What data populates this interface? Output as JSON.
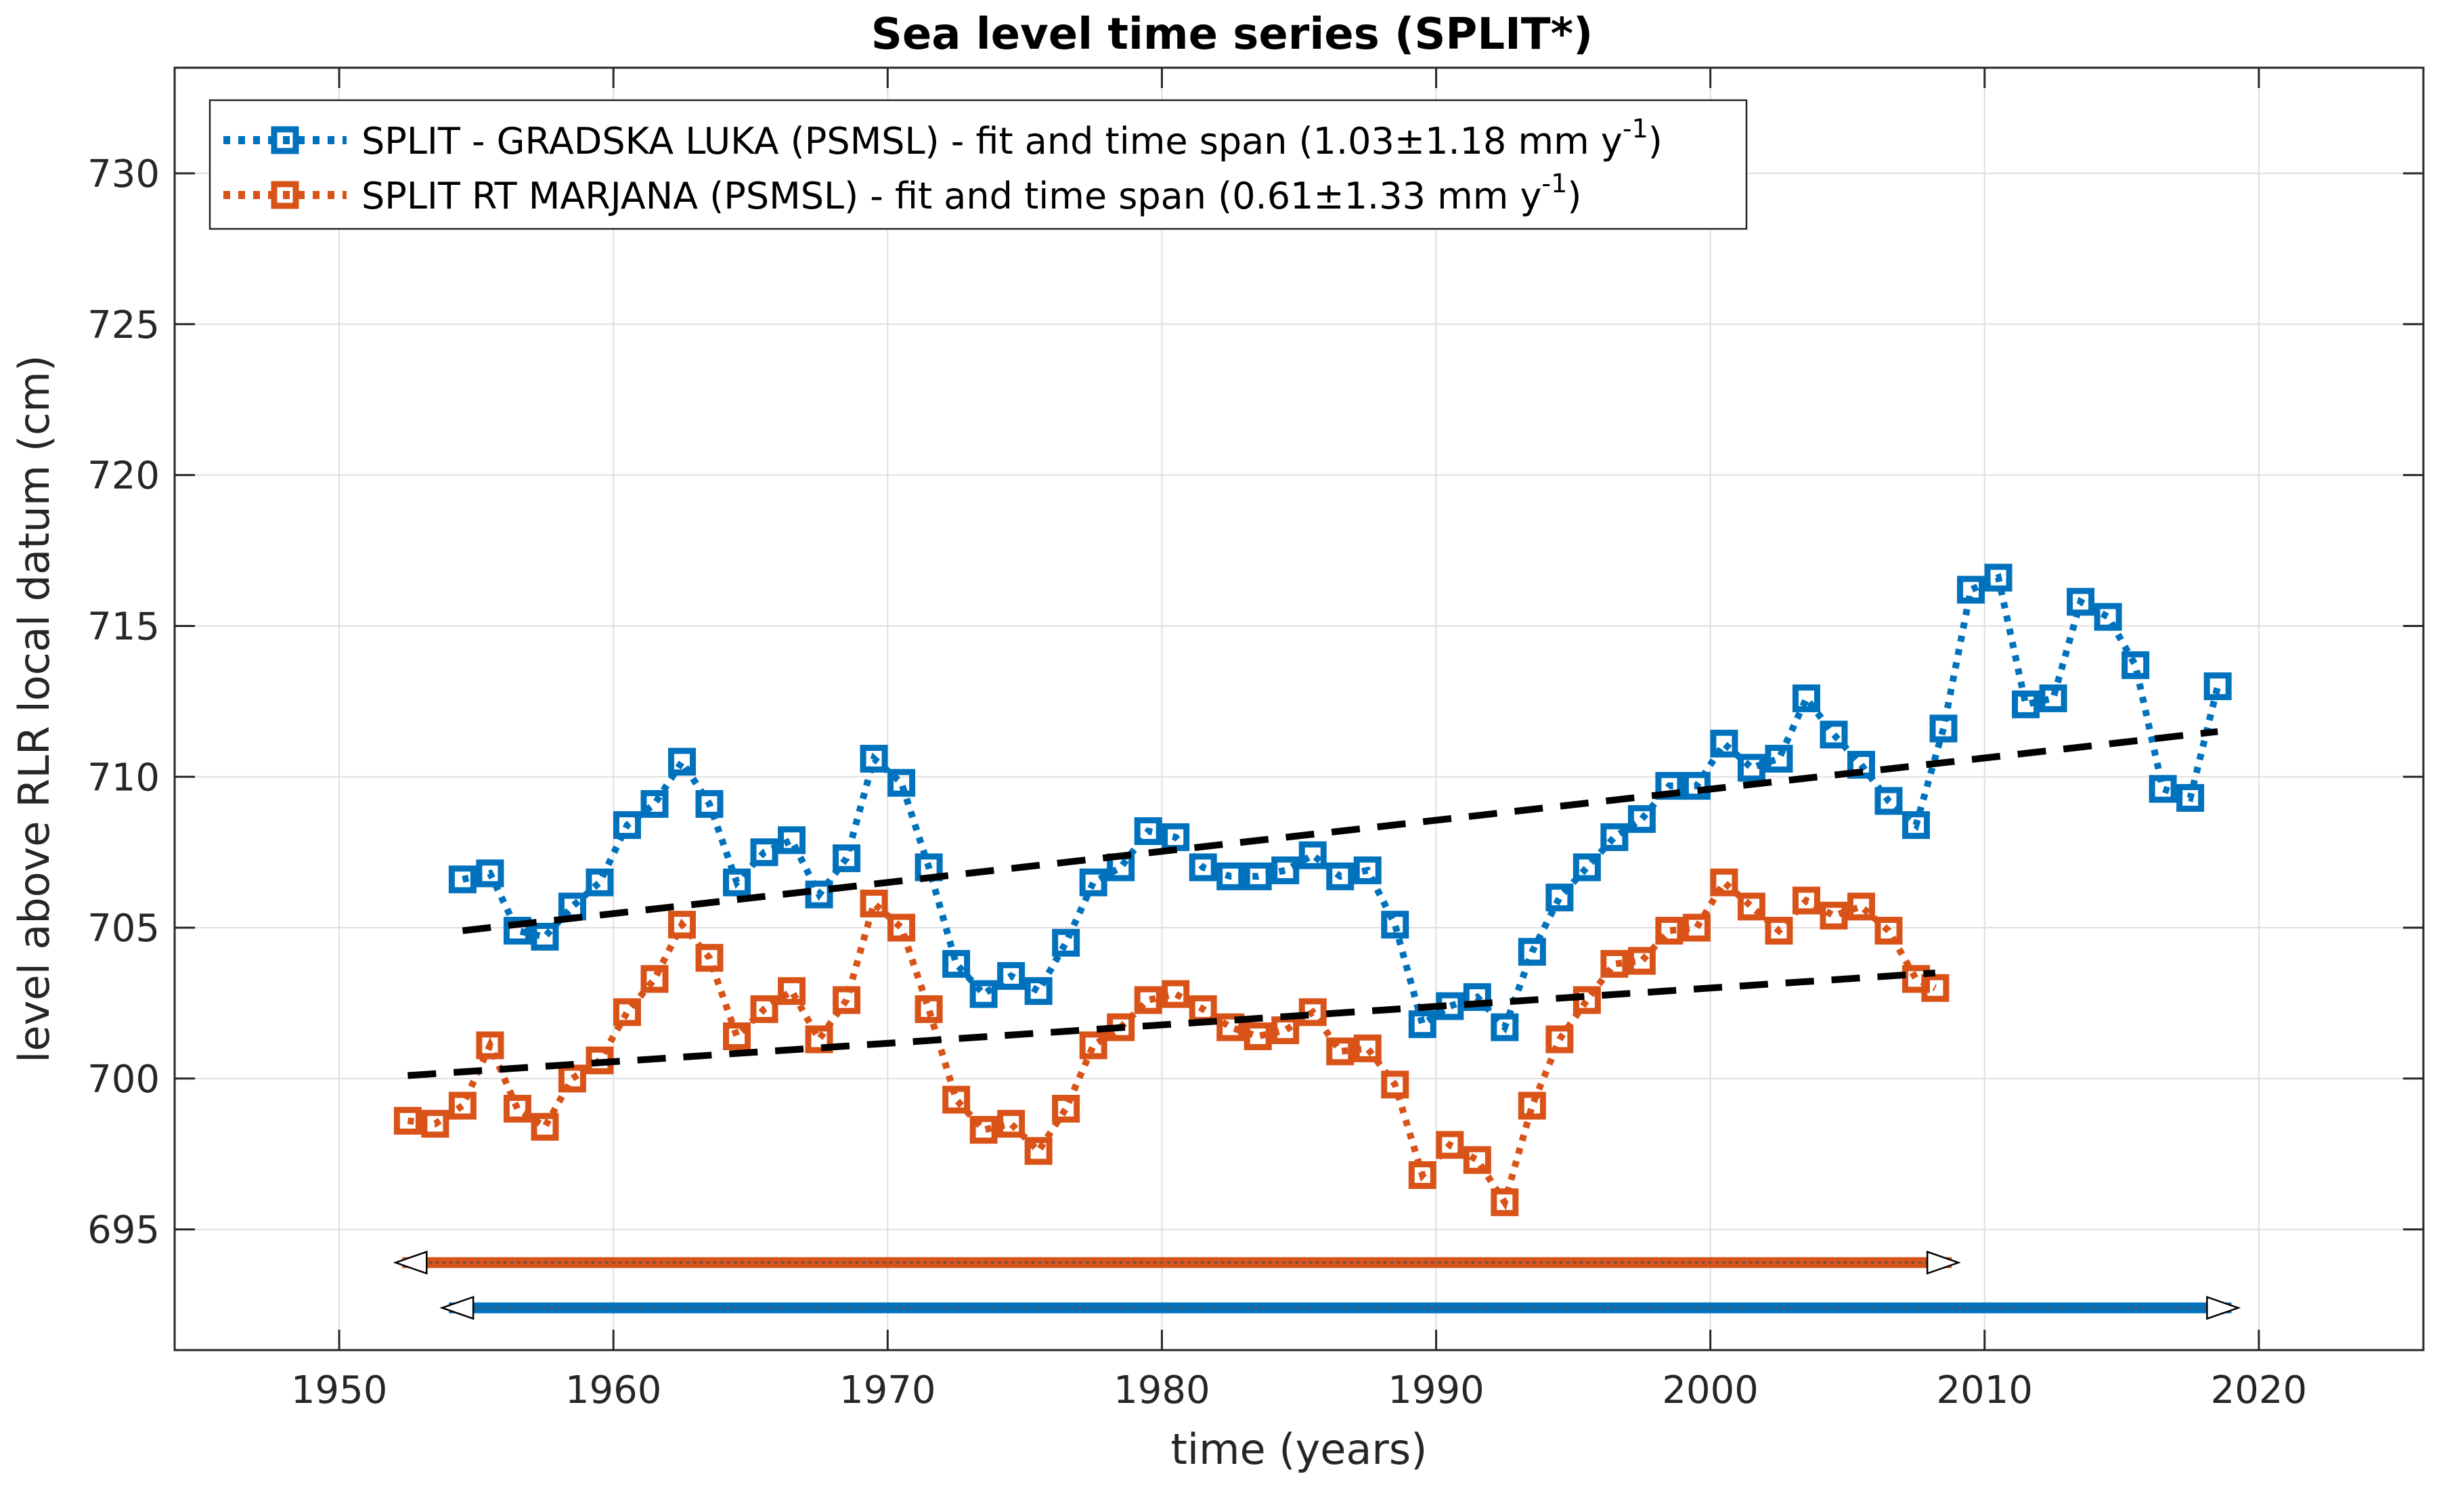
{
  "chart_data": {
    "type": "line",
    "title": "Sea level time series (SPLIT*)",
    "xlabel": "time (years)",
    "ylabel": "level above RLR local datum (cm)",
    "xlim": [
      1944,
      2026
    ],
    "ylim": [
      691,
      733.5
    ],
    "xticks": [
      1950,
      1960,
      1970,
      1980,
      1990,
      2000,
      2010,
      2020
    ],
    "yticks": [
      695,
      700,
      705,
      710,
      715,
      720,
      725,
      730
    ],
    "grid": true,
    "legend_position": "top-left",
    "series": [
      {
        "name": "SPLIT - GRADSKA LUKA (PSMSL) - fit and time span",
        "legend_prefix": "SPLIT - GRADSKA LUKA (PSMSL) - fit and time span (1.03",
        "legend_pm": "±",
        "legend_mid": "1.18 mm y",
        "legend_sup": "-1",
        "legend_suffix": ")",
        "trend_mm_per_year": 1.03,
        "trend_uncertainty": 1.18,
        "color": "#0072BD",
        "x": [
          1954.5,
          1955.5,
          1956.5,
          1957.5,
          1958.5,
          1959.5,
          1960.5,
          1961.5,
          1962.5,
          1963.5,
          1964.5,
          1965.5,
          1966.5,
          1967.5,
          1968.5,
          1969.5,
          1970.5,
          1971.5,
          1972.5,
          1973.5,
          1974.5,
          1975.5,
          1976.5,
          1977.5,
          1978.5,
          1979.5,
          1980.5,
          1981.5,
          1982.5,
          1983.5,
          1984.5,
          1985.5,
          1986.5,
          1987.5,
          1988.5,
          1989.5,
          1990.5,
          1991.5,
          1992.5,
          1993.5,
          1994.5,
          1995.5,
          1996.5,
          1997.5,
          1998.5,
          1999.5,
          2000.5,
          2001.5,
          2002.5,
          2003.5,
          2004.5,
          2005.5,
          2006.5,
          2007.5,
          2008.5,
          2009.5,
          2010.5,
          2011.5,
          2012.5,
          2013.5,
          2014.5,
          2015.5,
          2016.5,
          2017.5,
          2018.5
        ],
        "y": [
          706.6,
          706.8,
          704.9,
          704.7,
          705.7,
          706.5,
          708.4,
          709.1,
          710.5,
          709.1,
          706.5,
          707.5,
          707.9,
          706.1,
          707.3,
          710.6,
          709.8,
          707.0,
          703.8,
          702.8,
          703.4,
          702.9,
          704.5,
          706.5,
          707.0,
          708.2,
          708.0,
          707.0,
          706.7,
          706.7,
          706.9,
          707.4,
          706.7,
          706.9,
          705.1,
          701.8,
          702.4,
          702.7,
          701.7,
          704.2,
          706.0,
          707.0,
          708.0,
          708.6,
          709.7,
          709.7,
          711.1,
          710.3,
          710.6,
          712.6,
          711.4,
          710.4,
          709.2,
          708.4,
          711.6,
          716.2,
          716.6,
          712.4,
          712.6,
          715.8,
          715.3,
          713.7,
          709.6,
          709.3,
          713.0
        ],
        "fit": {
          "x": [
            1954.5,
            2018.5
          ],
          "y": [
            704.9,
            711.5
          ]
        },
        "span": {
          "start": 1954.0,
          "end": 2019.0,
          "y": 692.4
        }
      },
      {
        "name": "SPLIT RT MARJANA (PSMSL) - fit and time span",
        "legend_prefix": "SPLIT RT MARJANA (PSMSL) - fit and time span (0.61",
        "legend_pm": "±",
        "legend_mid": "1.33 mm y",
        "legend_sup": "-1",
        "legend_suffix": ")",
        "trend_mm_per_year": 0.61,
        "trend_uncertainty": 1.33,
        "color": "#D95319",
        "x": [
          1952.5,
          1953.5,
          1954.5,
          1955.5,
          1956.5,
          1957.5,
          1958.5,
          1959.5,
          1960.5,
          1961.5,
          1962.5,
          1963.5,
          1964.5,
          1965.5,
          1966.5,
          1967.5,
          1968.5,
          1969.5,
          1970.5,
          1971.5,
          1972.5,
          1973.5,
          1974.5,
          1975.5,
          1976.5,
          1977.5,
          1978.5,
          1979.5,
          1980.5,
          1981.5,
          1982.5,
          1983.5,
          1984.5,
          1985.5,
          1986.5,
          1987.5,
          1988.5,
          1989.5,
          1990.5,
          1991.5,
          1992.5,
          1993.5,
          1994.5,
          1995.5,
          1996.5,
          1997.5,
          1998.5,
          1999.5,
          2000.5,
          2001.5,
          2002.5,
          2003.5,
          2004.5,
          2005.5,
          2006.5,
          2007.5,
          2008.2
        ],
        "y": [
          698.6,
          698.5,
          699.1,
          701.1,
          699.0,
          698.4,
          700.0,
          700.6,
          702.2,
          703.3,
          705.1,
          704.0,
          701.4,
          702.3,
          702.9,
          701.3,
          702.6,
          705.8,
          705.0,
          702.3,
          699.3,
          698.3,
          698.5,
          697.6,
          699.0,
          701.1,
          701.7,
          702.6,
          702.8,
          702.3,
          701.7,
          701.4,
          701.6,
          702.2,
          700.9,
          701.0,
          699.8,
          696.8,
          697.8,
          697.3,
          695.9,
          699.1,
          701.3,
          702.6,
          703.8,
          703.9,
          704.9,
          705.0,
          706.5,
          705.7,
          704.9,
          705.9,
          705.4,
          705.7,
          704.9,
          703.3,
          703.0
        ],
        "fit": {
          "x": [
            1952.5,
            2008.2
          ],
          "y": [
            700.1,
            703.5
          ]
        },
        "span": {
          "start": 1952.3,
          "end": 2008.8,
          "y": 693.9
        }
      }
    ],
    "fit_color": "#000000"
  }
}
